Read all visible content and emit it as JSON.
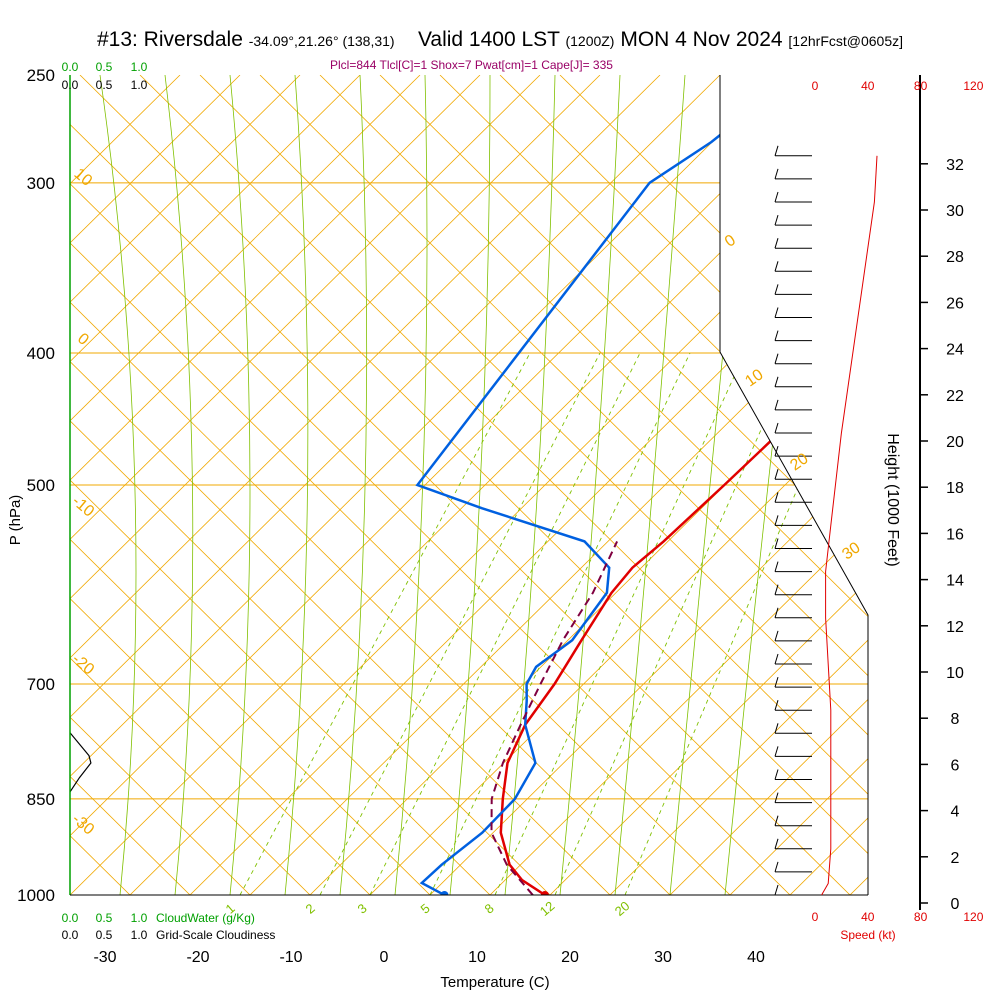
{
  "title": {
    "station": "#13: Riversdale",
    "coords": "-34.09°,21.26° (138,31)",
    "valid": "Valid 1400 LST",
    "utc": "(1200Z)",
    "date": "MON 4 Nov 2024",
    "forecast": "[12hrFcst@0605z]"
  },
  "params_line": "Plcl=844 Tlcl[C]=1 Shox=7 Pwat[cm]=1 Cape[J]= 335",
  "colors": {
    "isobar": "#f0a800",
    "dry_adiabat": "#f0a800",
    "moist_adiabat": "#80c000",
    "mixing_ratio": "#80c000",
    "temperature": "#e00000",
    "dewpoint": "#0060e0",
    "parcel": "#800040",
    "cloud_water": "#00a000",
    "speed": "#e00000"
  },
  "chart_data": {
    "type": "line",
    "title": "",
    "xlabel": "Temperature (C)",
    "ylabel": "P (hPa)",
    "right_ylabel": "Height (1000 Feet)",
    "x_ticks": [
      "-30",
      "-20",
      "-10",
      "0",
      "10",
      "20",
      "30",
      "40"
    ],
    "p_ticks": [
      "250",
      "300",
      "400",
      "500",
      "700",
      "850",
      "1000"
    ],
    "height_ticks": [
      "0",
      "2",
      "4",
      "6",
      "8",
      "10",
      "12",
      "14",
      "16",
      "18",
      "20",
      "22",
      "24",
      "26",
      "28",
      "30",
      "32"
    ],
    "dry_adiabat_labels": [
      "0",
      "10",
      "20",
      "30",
      "10",
      "0",
      "-10",
      "-20",
      "-30"
    ],
    "mixing_ratio_labels": [
      "1",
      "2",
      "3",
      "5",
      "8",
      "12",
      "20"
    ],
    "cloud_water_scale_top": [
      "0.0",
      "0.5",
      "1.0"
    ],
    "cloudiness_scale_top": [
      "0.0",
      "0.5",
      "1.0"
    ],
    "cloud_water_scale_bottom": [
      "0.0",
      "0.5",
      "1.0"
    ],
    "cloud_water_label": "CloudWater (g/Kg)",
    "cloudiness_scale_bottom": [
      "0.0",
      "0.5",
      "1.0"
    ],
    "cloudiness_label": "Grid-Scale Cloudiness",
    "speed_ticks_top": [
      "0",
      "40",
      "80",
      "120"
    ],
    "speed_ticks_bottom": [
      "0",
      "40",
      "80",
      "120"
    ],
    "speed_label": "Speed (kt)",
    "series": [
      {
        "name": "temperature",
        "points": [
          [
            1000,
            17.3
          ],
          [
            975,
            13.5
          ],
          [
            950,
            10.8
          ],
          [
            900,
            7.0
          ],
          [
            850,
            4.2
          ],
          [
            800,
            1.5
          ],
          [
            750,
            0.0
          ],
          [
            700,
            -0.5
          ],
          [
            650,
            -1.5
          ],
          [
            600,
            -2.5
          ],
          [
            575,
            -2.5
          ],
          [
            550,
            -1.5
          ],
          [
            500,
            0.0
          ],
          [
            450,
            1.5
          ],
          [
            400,
            0.5
          ],
          [
            350,
            -0.5
          ],
          [
            325,
            0.0
          ],
          [
            300,
            1.0
          ],
          [
            270,
            2.5
          ],
          [
            260,
            3.2
          ]
        ]
      },
      {
        "name": "dewpoint",
        "points": [
          [
            1000,
            6.5
          ],
          [
            980,
            3.0
          ],
          [
            950,
            3.5
          ],
          [
            900,
            5.0
          ],
          [
            850,
            5.5
          ],
          [
            800,
            4.5
          ],
          [
            750,
            0.0
          ],
          [
            720,
            -2.0
          ],
          [
            700,
            -3.5
          ],
          [
            680,
            -4.0
          ],
          [
            650,
            -2.5
          ],
          [
            600,
            -3.0
          ],
          [
            575,
            -5.0
          ],
          [
            550,
            -10.0
          ],
          [
            520,
            -24.0
          ],
          [
            500,
            -33.0
          ],
          [
            300,
            -35.0
          ],
          [
            280,
            -32.0
          ],
          [
            260,
            -30.0
          ]
        ]
      },
      {
        "name": "parcel",
        "points": [
          [
            1000,
            16.0
          ],
          [
            950,
            10.5
          ],
          [
            900,
            6.0
          ],
          [
            850,
            3.0
          ],
          [
            800,
            1.0
          ],
          [
            750,
            -0.5
          ],
          [
            700,
            -2.0
          ],
          [
            650,
            -3.5
          ],
          [
            600,
            -4.5
          ],
          [
            550,
            -6.5
          ]
        ]
      }
    ],
    "surface_temperature": 17.3,
    "surface_dewpoint": 6.5,
    "cloudiness_profile": [
      [
        760,
        0.0
      ],
      [
        790,
        0.2
      ],
      [
        800,
        0.22
      ],
      [
        820,
        0.1
      ],
      [
        840,
        0.0
      ]
    ],
    "wind_speed_profile_kt": [
      [
        0,
        5
      ],
      [
        0.5,
        10
      ],
      [
        2,
        12
      ],
      [
        5,
        12
      ],
      [
        8,
        12
      ],
      [
        10,
        10
      ],
      [
        12,
        8
      ],
      [
        14,
        8
      ],
      [
        16,
        12
      ],
      [
        18,
        16
      ],
      [
        20,
        20
      ],
      [
        22,
        25
      ],
      [
        24,
        30
      ],
      [
        26,
        35
      ],
      [
        28,
        40
      ],
      [
        30,
        45
      ],
      [
        32,
        47
      ]
    ],
    "xlim": [
      -30,
      40
    ],
    "ylim_hpa": [
      1000,
      250
    ]
  }
}
